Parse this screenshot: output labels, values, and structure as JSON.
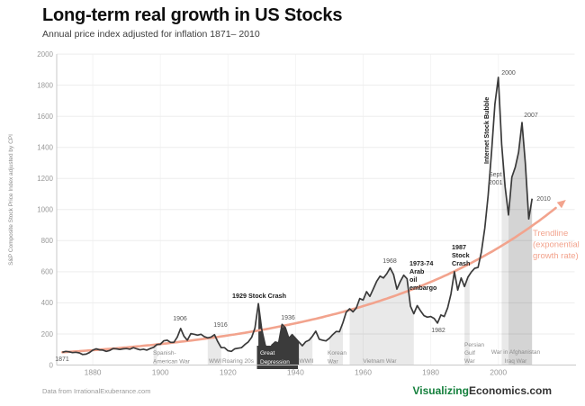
{
  "header": {
    "title": "Long-term real growth in US Stocks",
    "subtitle": "Annual price index adjusted for inflation 1871– 2010"
  },
  "footer": {
    "source": "Data from IrrationalExuberance.com",
    "brand_green": "Visualizing",
    "brand_dark": "Economics.com"
  },
  "chart_data": {
    "type": "line",
    "title": "Long-term real growth in US Stocks",
    "subtitle": "Annual price index adjusted for inflation 1871– 2010",
    "ylabel": "S&P Composite Stock Price Index adjusted by CPI",
    "xlim": [
      1871,
      2010
    ],
    "ylim": [
      0,
      2000
    ],
    "grid": true,
    "x_ticks": [
      1880,
      1900,
      1920,
      1940,
      1960,
      1980,
      2000
    ],
    "y_ticks": [
      0,
      200,
      400,
      600,
      800,
      1000,
      1200,
      1400,
      1600,
      1800,
      2000
    ],
    "series": [
      {
        "name": "S&P Composite Stock Price Index adjusted by CPI",
        "start_year": 1871,
        "values": [
          82,
          88,
          85,
          80,
          82,
          78,
          68,
          70,
          80,
          96,
          104,
          98,
          96,
          88,
          94,
          106,
          104,
          100,
          104,
          106,
          102,
          112,
          104,
          98,
          102,
          96,
          106,
          114,
          132,
          134,
          156,
          160,
          146,
          146,
          180,
          235,
          185,
          160,
          202,
          198,
          192,
          198,
          183,
          175,
          180,
          195,
          150,
          112,
          112,
          92,
          88,
          104,
          108,
          112,
          132,
          148,
          178,
          238,
          395,
          230,
          130,
          78,
          128,
          148,
          142,
          262,
          240,
          172,
          196,
          172,
          148,
          124,
          150,
          160,
          186,
          218,
          166,
          160,
          155,
          172,
          196,
          216,
          214,
          272,
          340,
          362,
          342,
          368,
          428,
          418,
          472,
          442,
          490,
          538,
          572,
          560,
          588,
          625,
          582,
          488,
          538,
          578,
          555,
          378,
          330,
          382,
          348,
          318,
          308,
          312,
          300,
          270,
          322,
          312,
          368,
          458,
          600,
          482,
          560,
          505,
          565,
          598,
          622,
          628,
          728,
          882,
          1092,
          1372,
          1678,
          1850,
          1420,
          1148,
          965,
          1208,
          1272,
          1368,
          1560,
          1300,
          940,
          1070
        ]
      }
    ],
    "trendline": {
      "type": "exponential",
      "label_lines": [
        "Trendline",
        "(exponential",
        "growth rate)"
      ],
      "start_year": 1871,
      "start_value": 82,
      "annual_growth_rate": 0.0172
    },
    "regions": [
      {
        "id": "spanish",
        "label": [
          "Spanish-",
          "American War"
        ],
        "years": [
          1898,
          1899
        ],
        "style": "light"
      },
      {
        "id": "wwi",
        "label": [
          "WWI"
        ],
        "years": [
          1914,
          1918
        ],
        "style": "light"
      },
      {
        "id": "roaring",
        "label": [
          "Roaring 20s"
        ],
        "years": [
          1920,
          1929
        ],
        "style": "none"
      },
      {
        "id": "depression",
        "label": [
          "Great",
          "Depression"
        ],
        "years": [
          1929,
          1941
        ],
        "style": "dark"
      },
      {
        "id": "wwii",
        "label": [
          "WWII"
        ],
        "years": [
          1941,
          1945
        ],
        "style": "light"
      },
      {
        "id": "korean",
        "label": [
          "Korean",
          "War"
        ],
        "years": [
          1950,
          1954
        ],
        "style": "light"
      },
      {
        "id": "vietnam",
        "label": [
          "Vietnam War"
        ],
        "years": [
          1956,
          1975
        ],
        "style": "light"
      },
      {
        "id": "gulf",
        "label": [
          "Persian",
          "Gulf",
          "War"
        ],
        "years": [
          1990,
          1991.5
        ],
        "style": "light"
      },
      {
        "id": "afghanistan",
        "label": [
          "War in Afghanistan",
          "Iraq War"
        ],
        "years": [
          2001,
          2010
        ],
        "style": "light"
      },
      {
        "id": "iraq",
        "label": [],
        "years": [
          2003,
          2010
        ],
        "style": "light"
      }
    ],
    "annotations": [
      {
        "id": "start1871",
        "lines": [
          "1871"
        ],
        "year": 1871,
        "value": 82,
        "style": "gray"
      },
      {
        "id": "peak1906",
        "lines": [
          "1906"
        ],
        "year": 1906,
        "value": 235,
        "style": "gray"
      },
      {
        "id": "peak1916",
        "lines": [
          "1916"
        ],
        "year": 1916,
        "value": 195,
        "style": "gray"
      },
      {
        "id": "crash1929",
        "lines": [
          "1929 Stock Crash"
        ],
        "year": 1929,
        "value": 395,
        "style": "bold"
      },
      {
        "id": "peak1936",
        "lines": [
          "1936"
        ],
        "year": 1936,
        "value": 262,
        "style": "gray"
      },
      {
        "id": "peak1968",
        "lines": [
          "1968"
        ],
        "year": 1968,
        "value": 625,
        "style": "gray"
      },
      {
        "id": "embargo",
        "lines": [
          "1973-74",
          "Arab",
          "oil",
          "embargo"
        ],
        "year": 1974,
        "value": 378,
        "style": "bold"
      },
      {
        "id": "low1982",
        "lines": [
          "1982"
        ],
        "year": 1982,
        "value": 270,
        "style": "gray"
      },
      {
        "id": "crash1987",
        "lines": [
          "1987",
          "Stock",
          "Crash"
        ],
        "year": 1987,
        "value": 600,
        "style": "bold"
      },
      {
        "id": "bubble",
        "lines": [
          "Internet Stock Bubble"
        ],
        "year": 1998,
        "value": 1372,
        "style": "bold-vertical"
      },
      {
        "id": "peak2000",
        "lines": [
          "2000"
        ],
        "year": 2000,
        "value": 1850,
        "style": "gray"
      },
      {
        "id": "sept2001",
        "lines": [
          "Sept",
          "2001"
        ],
        "year": 2001,
        "value": 1420,
        "style": "gray"
      },
      {
        "id": "peak2007",
        "lines": [
          "2007"
        ],
        "year": 2007,
        "value": 1560,
        "style": "gray"
      },
      {
        "id": "end2010",
        "lines": [
          "2010"
        ],
        "year": 2010,
        "value": 1070,
        "style": "gray"
      }
    ],
    "colors": {
      "series_line": "#3a3a3a",
      "trendline": "#f2a38d",
      "war_band": "rgba(0,0,0,0.085)",
      "depression_fill": "#3b3b3b",
      "grid": "#ededed",
      "grid_vertical": "#f4f4f4",
      "axis": "#c8c8c8",
      "tick_label": "#999999",
      "region_label": "#8c8c8c",
      "annotation": "#555555",
      "annotation_bold": "#1a1a1a",
      "brand_green": "#15803d"
    }
  }
}
